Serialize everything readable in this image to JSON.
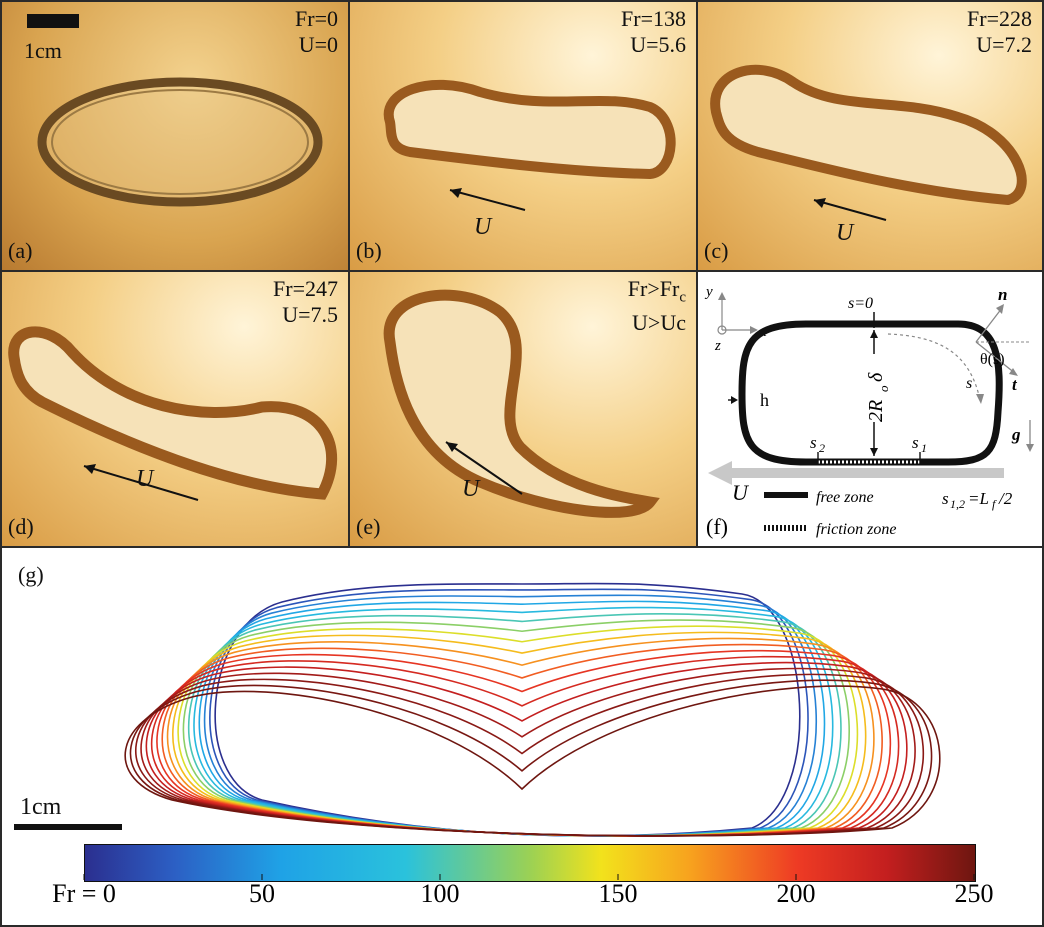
{
  "panels": {
    "a": {
      "tag": "(a)",
      "fr": "Fr=0",
      "u": "U=0",
      "scale": "1cm"
    },
    "b": {
      "tag": "(b)",
      "fr": "Fr=138",
      "u": "U=5.6",
      "arrow": "U"
    },
    "c": {
      "tag": "(c)",
      "fr": "Fr=228",
      "u": "U=7.2",
      "arrow": "U"
    },
    "d": {
      "tag": "(d)",
      "fr": "Fr=247",
      "u": "U=7.5",
      "arrow": "U"
    },
    "e": {
      "tag": "(e)",
      "fr": "Fr>Fr",
      "fr_sub": "c",
      "u": "U>Uc",
      "arrow": "U"
    }
  },
  "schematic": {
    "tag": "(f)",
    "axis_y": "y",
    "axis_x": "x",
    "axis_z": "z",
    "s0": "s=0",
    "n": "n",
    "t": "t",
    "theta": "θ(s)",
    "s": "s",
    "h": "h",
    "g": "g",
    "height_label": "2R",
    "height_sub": "o",
    "height_tail": "δ",
    "s2": "s",
    "s2_sub": "2",
    "s1": "s",
    "s1_sub": "1",
    "u": "U",
    "free_zone": "free zone",
    "friction_zone": "friction zone",
    "s12_label": "s",
    "s12_sub": "1,2",
    "s12_eq": "=L",
    "s12_f": "f",
    "s12_tail": "/2"
  },
  "contour_plot": {
    "tag": "(g)",
    "scale": "1cm",
    "colorbar": {
      "ticks": [
        "Fr = 0",
        "50",
        "100",
        "150",
        "200",
        "250"
      ],
      "min": 0,
      "max": 250
    },
    "colors": {
      "blue": "#2b3a9f",
      "cyan": "#2bb5e8",
      "green": "#9bd154",
      "yellow": "#f2e21c",
      "orange": "#f08a24",
      "red": "#d8272a",
      "darkred": "#7a1a14"
    }
  },
  "chart_data": {
    "type": "line",
    "title": "",
    "xlabel": "",
    "ylabel": "",
    "colorbar_label": "Fr",
    "colorbar_range": [
      0,
      250
    ],
    "colorbar_ticks": [
      0,
      50,
      100,
      150,
      200,
      250
    ],
    "series": [
      {
        "fr": 0
      },
      {
        "fr": 20
      },
      {
        "fr": 40
      },
      {
        "fr": 60
      },
      {
        "fr": 80
      },
      {
        "fr": 100
      },
      {
        "fr": 120
      },
      {
        "fr": 140
      },
      {
        "fr": 160
      },
      {
        "fr": 175
      },
      {
        "fr": 190
      },
      {
        "fr": 205
      },
      {
        "fr": 215
      },
      {
        "fr": 225
      },
      {
        "fr": 235
      },
      {
        "fr": 242
      },
      {
        "fr": 247
      },
      {
        "fr": 250
      }
    ]
  }
}
